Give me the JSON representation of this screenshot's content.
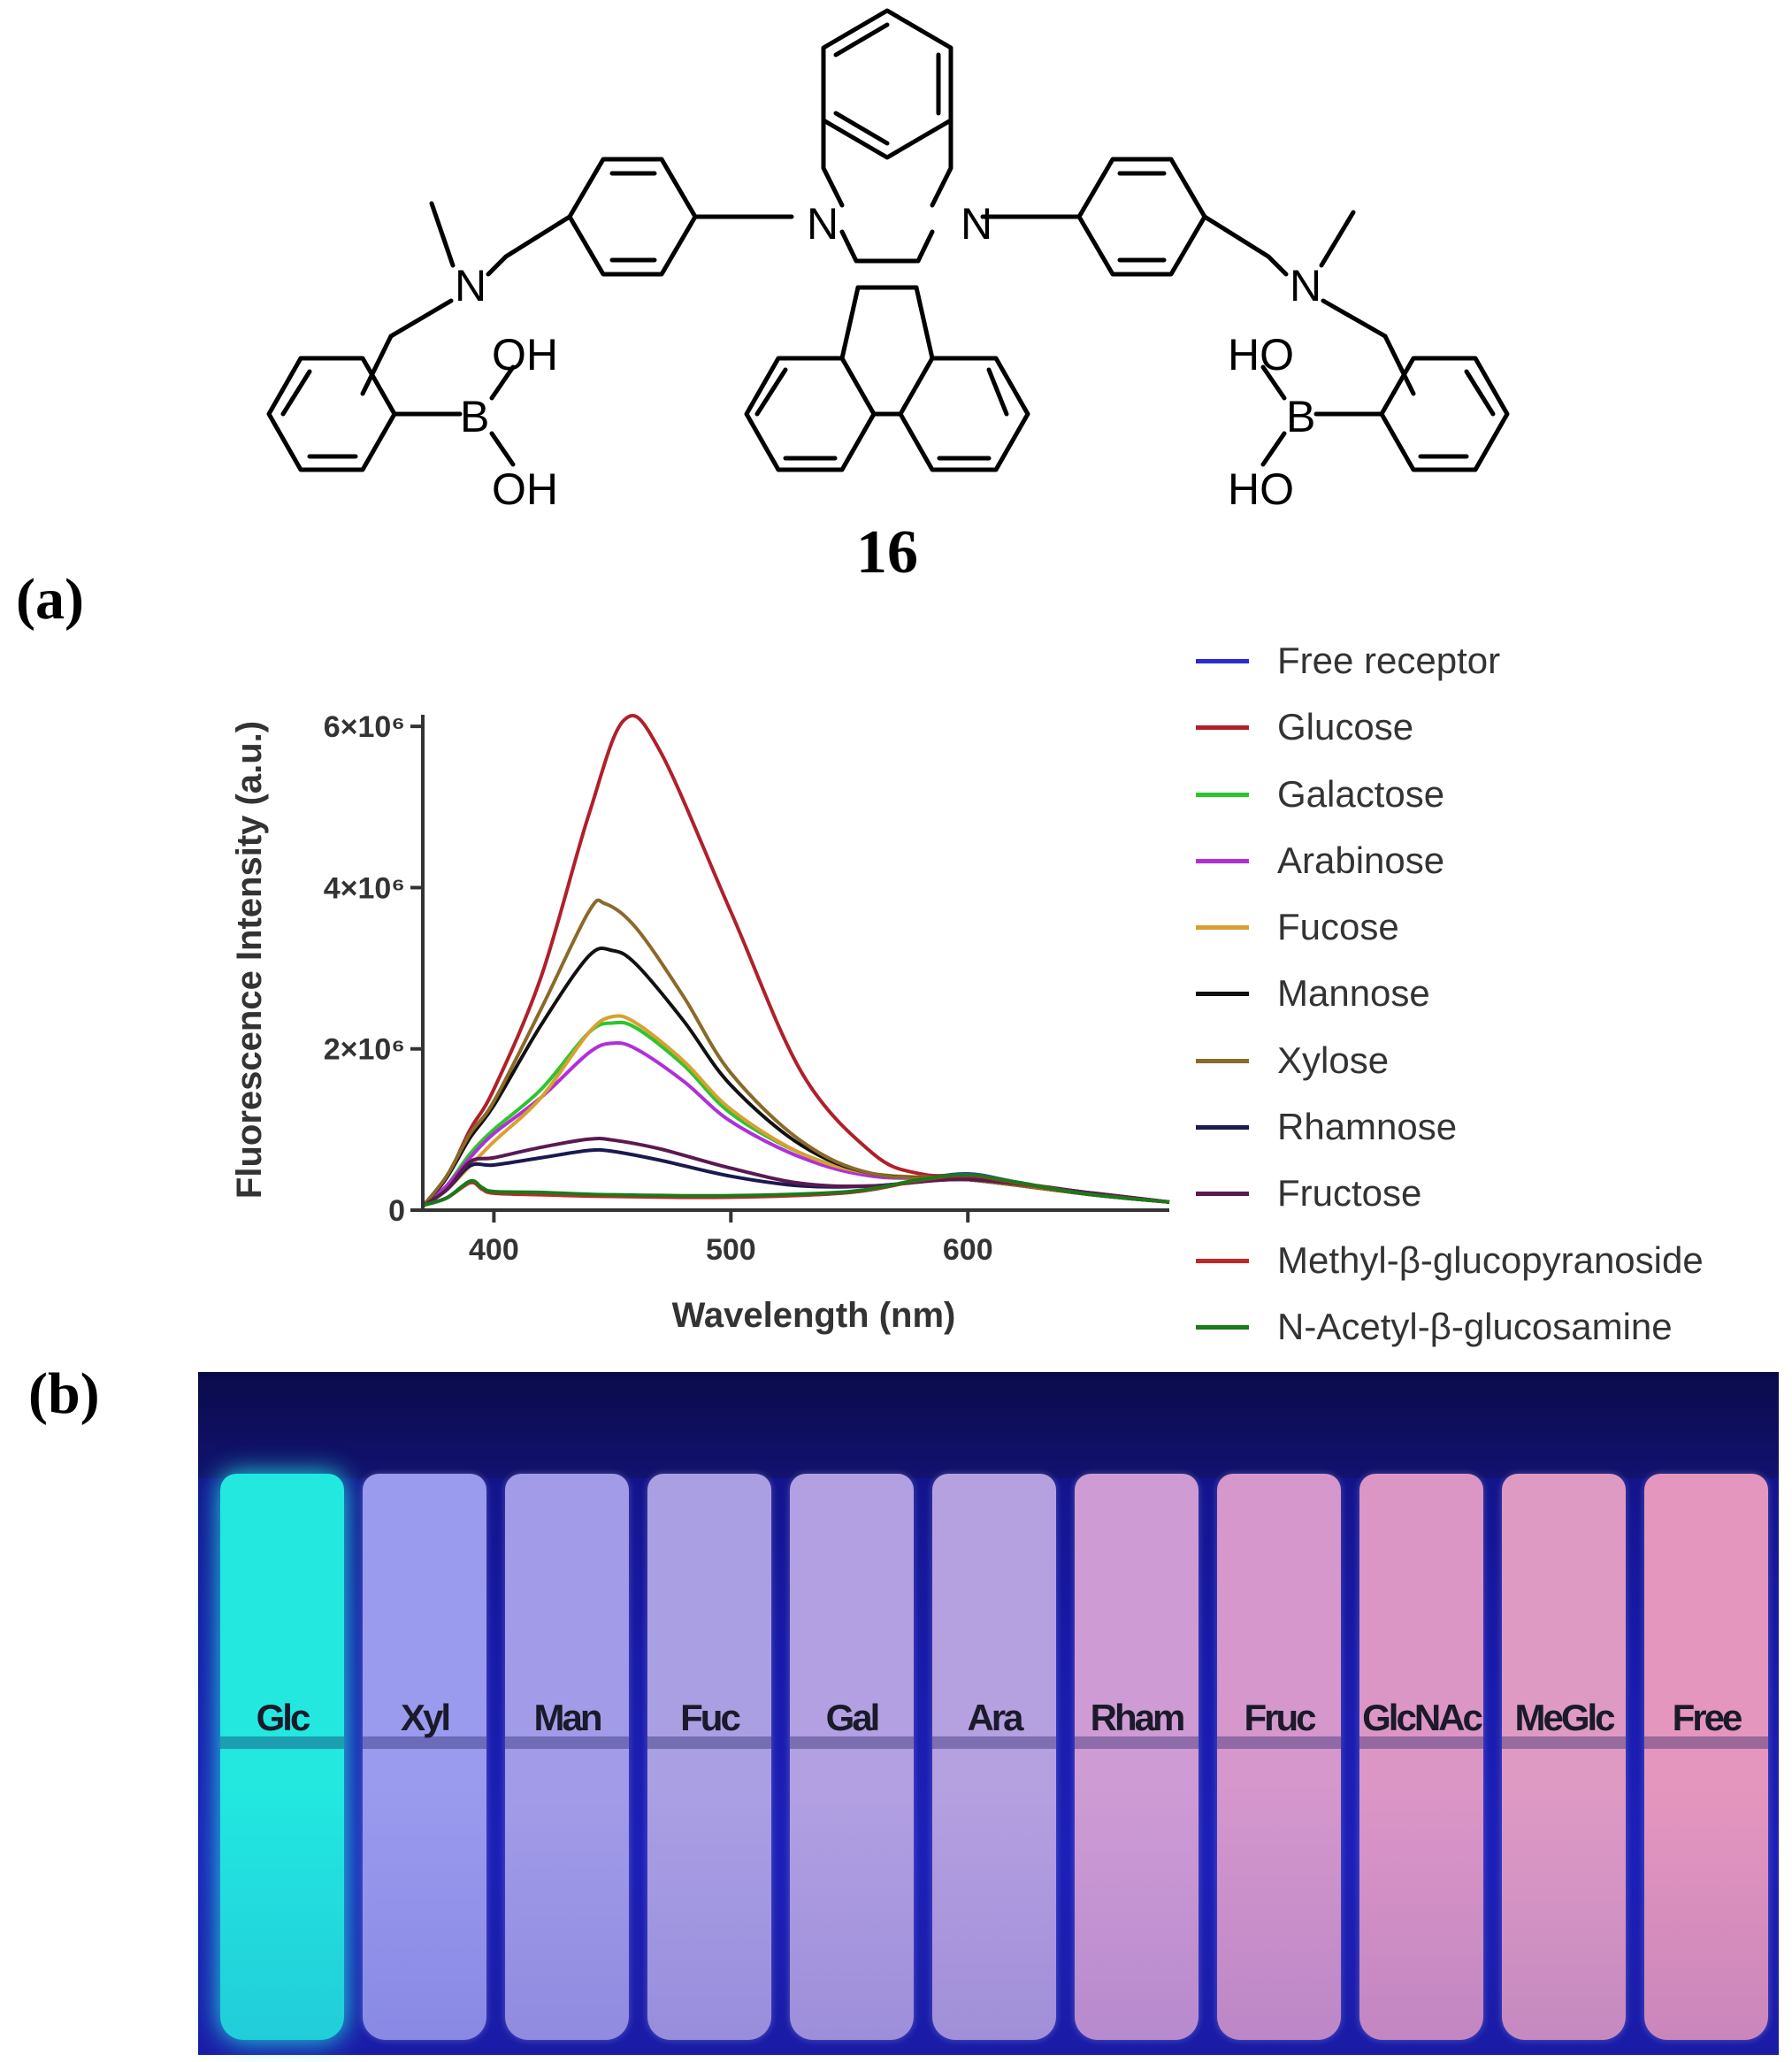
{
  "figure": {
    "panel_a_label": "(a)",
    "panel_b_label": "(b)",
    "compound_number": "16",
    "structure_labels": {
      "n": "N",
      "b": "B",
      "oh": "OH",
      "ho": "HO"
    }
  },
  "chart_data": {
    "type": "line",
    "title": "",
    "xlabel": "Wavelength (nm)",
    "ylabel": "Fluorescence Intensity (a.u.)",
    "xlim": [
      370,
      685
    ],
    "ylim": [
      0,
      6100000
    ],
    "x_ticks": [
      400,
      500,
      600
    ],
    "x_tick_labels": [
      "400",
      "500",
      "600"
    ],
    "y_ticks": [
      0,
      2000000,
      4000000,
      6000000
    ],
    "y_tick_labels": [
      "0",
      "2×10⁶",
      "4×10⁶",
      "6×10⁶"
    ],
    "legend_position": "right",
    "grid": false,
    "series": [
      {
        "name": "Free receptor",
        "color": "#2a2ad8",
        "x": [
          370,
          380,
          390,
          395,
          400,
          420,
          450,
          500,
          550,
          580,
          600,
          620,
          650,
          685
        ],
        "y": [
          60000,
          150000,
          350000,
          270000,
          220000,
          200000,
          180000,
          170000,
          220000,
          380000,
          450000,
          350000,
          200000,
          100000
        ]
      },
      {
        "name": "Glucose",
        "color": "#b0202a",
        "x": [
          370,
          380,
          390,
          400,
          420,
          440,
          455,
          470,
          500,
          530,
          560,
          580,
          600,
          630,
          660,
          685
        ],
        "y": [
          50000,
          400000,
          1000000,
          1500000,
          2900000,
          4900000,
          6080000,
          5700000,
          3700000,
          1700000,
          700000,
          450000,
          420000,
          300000,
          180000,
          100000
        ]
      },
      {
        "name": "Galactose",
        "color": "#2ec42e",
        "x": [
          370,
          380,
          390,
          400,
          420,
          440,
          450,
          460,
          480,
          500,
          530,
          560,
          600,
          650,
          685
        ],
        "y": [
          50000,
          300000,
          700000,
          1000000,
          1500000,
          2200000,
          2320000,
          2260000,
          1800000,
          1200000,
          700000,
          450000,
          380000,
          200000,
          100000
        ]
      },
      {
        "name": "Arabinose",
        "color": "#b030d8",
        "x": [
          370,
          380,
          390,
          400,
          420,
          440,
          450,
          460,
          480,
          500,
          530,
          560,
          600,
          650,
          685
        ],
        "y": [
          50000,
          300000,
          650000,
          950000,
          1400000,
          1950000,
          2070000,
          2000000,
          1600000,
          1100000,
          650000,
          420000,
          380000,
          200000,
          100000
        ]
      },
      {
        "name": "Fucose",
        "color": "#d8a030",
        "x": [
          370,
          380,
          390,
          400,
          420,
          440,
          450,
          460,
          480,
          500,
          530,
          560,
          600,
          650,
          685
        ],
        "y": [
          50000,
          250000,
          550000,
          850000,
          1400000,
          2200000,
          2400000,
          2320000,
          1850000,
          1250000,
          700000,
          450000,
          380000,
          200000,
          100000
        ]
      },
      {
        "name": "Mannose",
        "color": "#111111",
        "x": [
          370,
          380,
          390,
          400,
          420,
          440,
          450,
          460,
          480,
          500,
          530,
          560,
          600,
          650,
          685
        ],
        "y": [
          50000,
          400000,
          900000,
          1300000,
          2300000,
          3150000,
          3220000,
          3050000,
          2350000,
          1550000,
          800000,
          450000,
          380000,
          200000,
          100000
        ]
      },
      {
        "name": "Xylose",
        "color": "#8a6a2a",
        "x": [
          370,
          380,
          390,
          400,
          420,
          440,
          447,
          460,
          480,
          500,
          530,
          560,
          600,
          650,
          685
        ],
        "y": [
          50000,
          420000,
          950000,
          1350000,
          2500000,
          3700000,
          3800000,
          3500000,
          2650000,
          1700000,
          850000,
          450000,
          380000,
          200000,
          100000
        ]
      },
      {
        "name": "Rhamnose",
        "color": "#1a1a50",
        "x": [
          370,
          380,
          390,
          400,
          420,
          440,
          450,
          470,
          500,
          530,
          560,
          600,
          650,
          685
        ],
        "y": [
          50000,
          250000,
          550000,
          560000,
          650000,
          740000,
          730000,
          620000,
          420000,
          300000,
          300000,
          380000,
          220000,
          100000
        ]
      },
      {
        "name": "Fructose",
        "color": "#5a1a50",
        "x": [
          370,
          380,
          390,
          400,
          420,
          440,
          450,
          470,
          500,
          530,
          560,
          600,
          650,
          685
        ],
        "y": [
          50000,
          250000,
          600000,
          650000,
          780000,
          880000,
          870000,
          760000,
          520000,
          330000,
          300000,
          380000,
          220000,
          100000
        ]
      },
      {
        "name": "Methyl-β-glucopyranoside",
        "color": "#c02828",
        "x": [
          370,
          380,
          390,
          395,
          400,
          420,
          450,
          500,
          550,
          580,
          600,
          620,
          650,
          685
        ],
        "y": [
          60000,
          150000,
          340000,
          260000,
          210000,
          190000,
          170000,
          160000,
          220000,
          370000,
          430000,
          340000,
          200000,
          100000
        ]
      },
      {
        "name": "N-Acetyl-β-glucosamine",
        "color": "#1a7a1a",
        "x": [
          370,
          380,
          390,
          395,
          400,
          420,
          450,
          500,
          550,
          580,
          600,
          620,
          650,
          685
        ],
        "y": [
          60000,
          150000,
          360000,
          280000,
          230000,
          220000,
          190000,
          180000,
          230000,
          380000,
          440000,
          350000,
          200000,
          100000
        ]
      }
    ]
  },
  "photo": {
    "background": "#1a1ca6",
    "vials": [
      {
        "label": "Glc",
        "color": "#22e8e0"
      },
      {
        "label": "Xyl",
        "color": "#9a9aee"
      },
      {
        "label": "Man",
        "color": "#a29ce8"
      },
      {
        "label": "Fuc",
        "color": "#ab9fe4"
      },
      {
        "label": "Gal",
        "color": "#b2a0e2"
      },
      {
        "label": "Ara",
        "color": "#b5a0e0"
      },
      {
        "label": "Rham",
        "color": "#cf9bd4"
      },
      {
        "label": "Fruc",
        "color": "#d597cc"
      },
      {
        "label": "GlcNAc",
        "color": "#dc96c6"
      },
      {
        "label": "MeGlc",
        "color": "#df9ac4"
      },
      {
        "label": "Free",
        "color": "#e596be"
      }
    ]
  }
}
